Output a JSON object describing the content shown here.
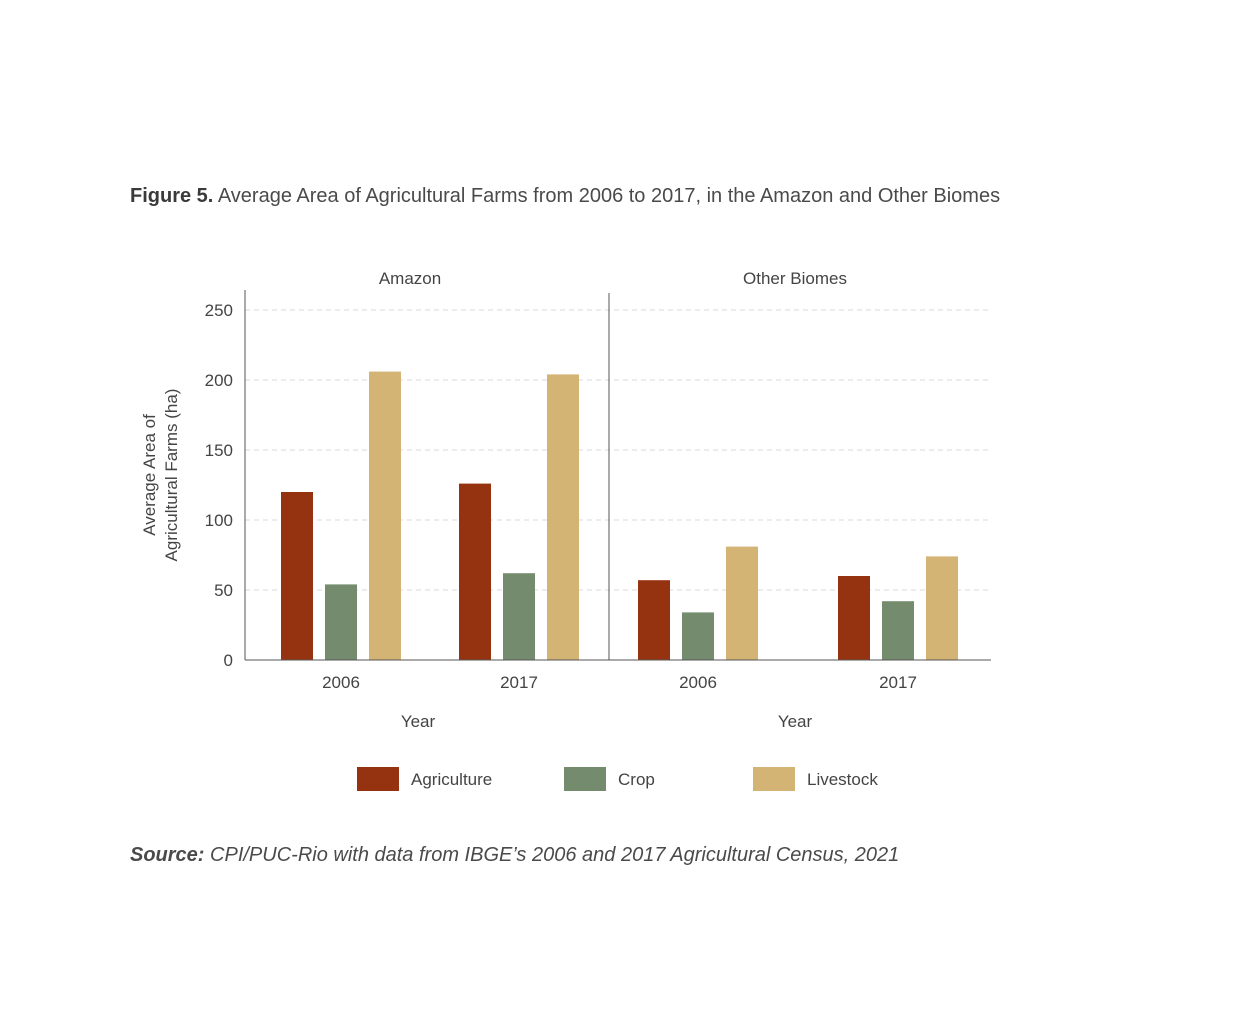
{
  "figure": {
    "label": "Figure 5.",
    "title": "Average Area of Agricultural Farms from 2006 to 2017, in the Amazon and Other Biomes"
  },
  "source": {
    "label": "Source:",
    "text": "CPI/PUC-Rio with data from IBGE’s 2006 and 2017 Agricultural Census, 2021"
  },
  "chart_data": {
    "type": "bar",
    "ylabel_lines": [
      "Average Area of",
      "Agricultural Farms (ha)"
    ],
    "ylim": [
      0,
      250
    ],
    "yticks": [
      0,
      50,
      100,
      150,
      200,
      250
    ],
    "grid": true,
    "legend_position": "bottom",
    "colors": {
      "Agriculture": "#953311",
      "Crop": "#748b6d",
      "Livestock": "#d3b475",
      "axis": "#555555",
      "grid": "#d9d9d9"
    },
    "panels": [
      {
        "title": "Amazon",
        "xlabel": "Year",
        "categories": [
          "2006",
          "2017"
        ],
        "series": [
          {
            "name": "Agriculture",
            "values": [
              120,
              126
            ]
          },
          {
            "name": "Crop",
            "values": [
              54,
              62
            ]
          },
          {
            "name": "Livestock",
            "values": [
              206,
              204
            ]
          }
        ]
      },
      {
        "title": "Other Biomes",
        "xlabel": "Year",
        "categories": [
          "2006",
          "2017"
        ],
        "series": [
          {
            "name": "Agriculture",
            "values": [
              57,
              60
            ]
          },
          {
            "name": "Crop",
            "values": [
              34,
              42
            ]
          },
          {
            "name": "Livestock",
            "values": [
              81,
              74
            ]
          }
        ]
      }
    ],
    "legend": [
      "Agriculture",
      "Crop",
      "Livestock"
    ]
  }
}
